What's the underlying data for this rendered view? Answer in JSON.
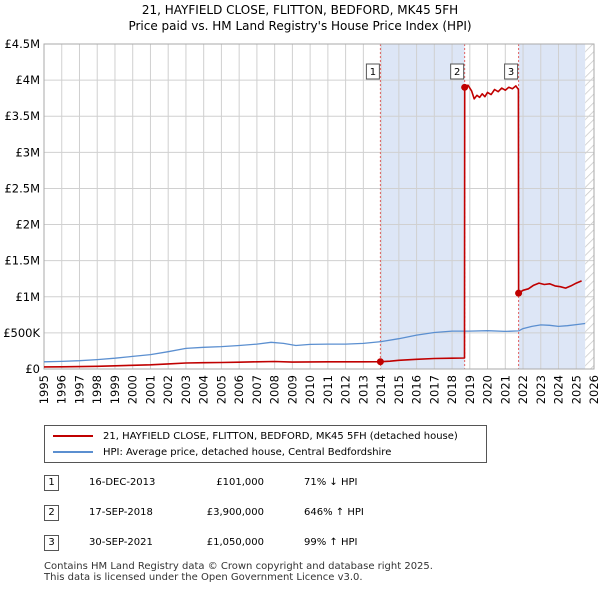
{
  "title": "21, HAYFIELD CLOSE, FLITTON, BEDFORD, MK45 5FH",
  "subtitle": "Price paid vs. HM Land Registry's House Price Index (HPI)",
  "legend": {
    "property_label": "21, HAYFIELD CLOSE, FLITTON, BEDFORD, MK45 5FH (detached house)",
    "hpi_label": "HPI: Average price, detached house, Central Bedfordshire"
  },
  "colors": {
    "property": "#c00000",
    "hpi": "#5b8fd0",
    "shade": "#dde6f6",
    "grid": "#d0d0d0"
  },
  "transactions": [
    {
      "num": "1",
      "date": "16-DEC-2013",
      "price": "£101,000",
      "hpi_change": "71% ↓ HPI"
    },
    {
      "num": "2",
      "date": "17-SEP-2018",
      "price": "£3,900,000",
      "hpi_change": "646% ↑ HPI"
    },
    {
      "num": "3",
      "date": "30-SEP-2021",
      "price": "£1,050,000",
      "hpi_change": "99% ↑ HPI"
    }
  ],
  "footer": {
    "line1": "Contains HM Land Registry data © Crown copyright and database right 2025.",
    "line2": "This data is licensed under the Open Government Licence v3.0."
  },
  "chart_data": {
    "type": "line",
    "xlim": [
      1995,
      2026
    ],
    "ylim": [
      0,
      4500000
    ],
    "y_ticks": [
      0,
      500000,
      1000000,
      1500000,
      2000000,
      2500000,
      3000000,
      3500000,
      4000000,
      4500000
    ],
    "y_tick_labels": [
      "£0",
      "£500K",
      "£1M",
      "£1.5M",
      "£2M",
      "£2.5M",
      "£3M",
      "£3.5M",
      "£4M",
      "£4.5M"
    ],
    "x_ticks": [
      1995,
      1996,
      1997,
      1998,
      1999,
      2000,
      2001,
      2002,
      2003,
      2004,
      2005,
      2006,
      2007,
      2008,
      2009,
      2010,
      2011,
      2012,
      2013,
      2014,
      2015,
      2016,
      2017,
      2018,
      2019,
      2020,
      2021,
      2022,
      2023,
      2024,
      2025,
      2026
    ],
    "shaded_ranges": [
      [
        2013.96,
        2018.71
      ],
      [
        2021.75,
        2025.5
      ]
    ],
    "hatched_from": 2025.5,
    "series": [
      {
        "name": "HPI: Average price, detached house, Central Bedfordshire",
        "x": [
          1995,
          1996,
          1997,
          1998,
          1999,
          2000,
          2001,
          2002,
          2003,
          2004,
          2005,
          2006,
          2007,
          2007.8,
          2008.5,
          2009.2,
          2010,
          2011,
          2012,
          2013,
          2014,
          2015,
          2016,
          2017,
          2018,
          2019,
          2020,
          2021,
          2021.75,
          2022,
          2022.5,
          2023,
          2023.5,
          2024,
          2024.5,
          2025,
          2025.5
        ],
        "values": [
          100000,
          105000,
          115000,
          130000,
          150000,
          175000,
          200000,
          240000,
          285000,
          300000,
          310000,
          325000,
          345000,
          370000,
          355000,
          325000,
          340000,
          345000,
          345000,
          355000,
          380000,
          420000,
          470000,
          505000,
          525000,
          525000,
          530000,
          520000,
          528000,
          560000,
          590000,
          610000,
          605000,
          590000,
          600000,
          615000,
          630000
        ]
      },
      {
        "name": "21, HAYFIELD CLOSE, FLITTON, BEDFORD, MK45 5FH (detached house)",
        "x": [
          1995,
          1996,
          1997,
          1998,
          1999,
          2000,
          2001,
          2002,
          2003,
          2004,
          2005,
          2006,
          2007,
          2008,
          2009,
          2010,
          2011,
          2012,
          2013,
          2013.96,
          2014.5,
          2015,
          2016,
          2017,
          2018,
          2018.7,
          2018.71,
          2018.9,
          2019.1,
          2019.25,
          2019.4,
          2019.55,
          2019.7,
          2019.85,
          2020,
          2020.2,
          2020.4,
          2020.6,
          2020.8,
          2021,
          2021.2,
          2021.4,
          2021.6,
          2021.74,
          2021.75,
          2022,
          2022.3,
          2022.6,
          2022.9,
          2023.2,
          2023.5,
          2023.8,
          2024.1,
          2024.4,
          2024.7,
          2025,
          2025.3
        ],
        "values": [
          29000,
          30000,
          33000,
          38000,
          44000,
          51000,
          58000,
          70000,
          83000,
          87000,
          90000,
          94000,
          100000,
          104000,
          95000,
          98000,
          100000,
          100000,
          100000,
          101000,
          108000,
          120000,
          135000,
          145000,
          150000,
          152000,
          3900000,
          3930000,
          3850000,
          3740000,
          3790000,
          3760000,
          3810000,
          3770000,
          3830000,
          3800000,
          3870000,
          3840000,
          3890000,
          3860000,
          3900000,
          3880000,
          3920000,
          3870000,
          1050000,
          1090000,
          1110000,
          1160000,
          1190000,
          1170000,
          1180000,
          1150000,
          1140000,
          1120000,
          1150000,
          1190000,
          1220000
        ]
      }
    ],
    "sales": [
      {
        "label": "1",
        "x": 2013.96,
        "value": 101000
      },
      {
        "label": "2",
        "x": 2018.71,
        "value": 3900000
      },
      {
        "label": "3",
        "x": 2021.75,
        "value": 1050000
      }
    ]
  }
}
